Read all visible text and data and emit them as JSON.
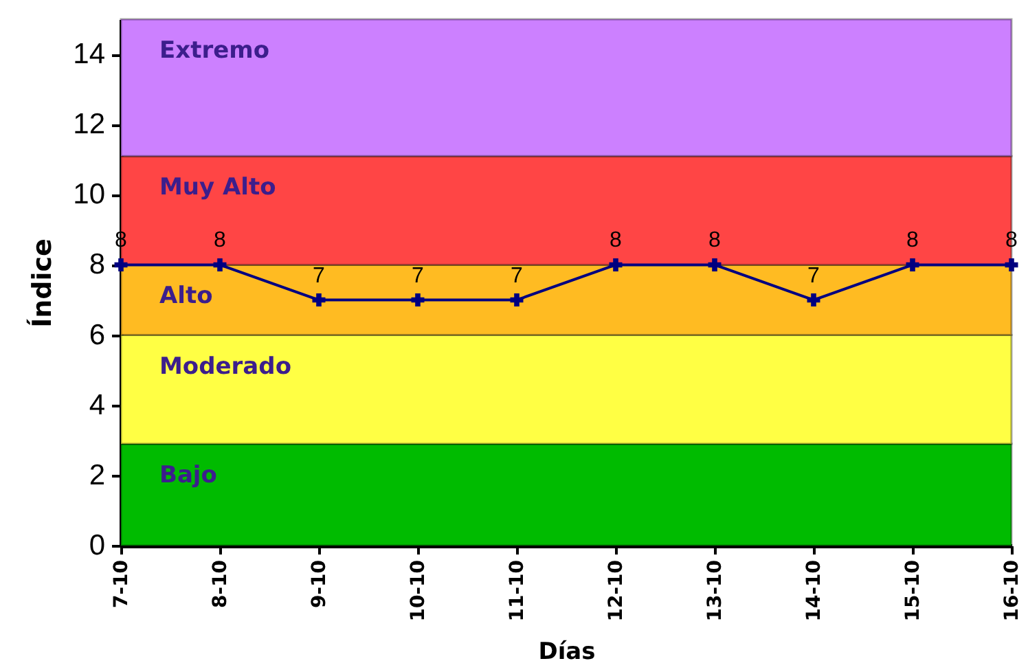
{
  "chart_data": {
    "type": "line",
    "xlabel": "Días",
    "ylabel": "Índice",
    "categories": [
      "7-10",
      "8-10",
      "9-10",
      "10-10",
      "11-10",
      "12-10",
      "13-10",
      "14-10",
      "15-10",
      "16-10"
    ],
    "series": [
      {
        "color": "#000080",
        "values": [
          8,
          8,
          7,
          7,
          7,
          8,
          8,
          7,
          8,
          8
        ]
      }
    ],
    "ylim": [
      0,
      15
    ],
    "yticks": [
      0,
      2,
      4,
      6,
      8,
      10,
      12,
      14
    ],
    "bands": [
      {
        "axis": "y",
        "from": 0,
        "to": 2.9,
        "label": "Bajo",
        "color": "#00bb00"
      },
      {
        "axis": "y",
        "from": 2.9,
        "to": 6,
        "label": "Moderado",
        "color": "#ffff44"
      },
      {
        "axis": "y",
        "from": 6,
        "to": 8,
        "label": "Alto",
        "color": "#ffbb22"
      },
      {
        "axis": "y",
        "from": 8,
        "to": 11.1,
        "label": "Muy Alto",
        "color": "#ff4545"
      },
      {
        "axis": "y",
        "from": 11.1,
        "to": 15,
        "label": "Extremo",
        "color": "#cc80ff"
      }
    ],
    "data_labels": true,
    "marker": "cross",
    "line_style": "solid",
    "grid": false
  }
}
